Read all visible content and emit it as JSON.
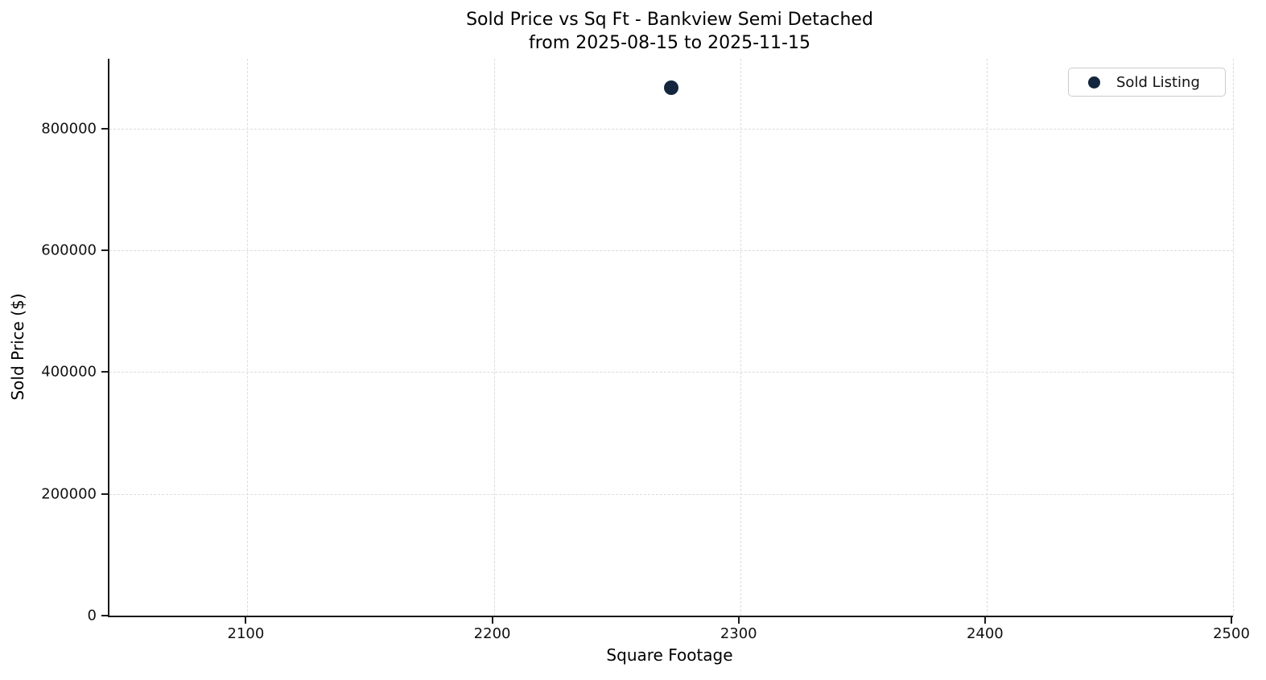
{
  "chart_data": {
    "type": "scatter",
    "title": "Sold Price vs Sq Ft - Bankview Semi Detached",
    "subtitle": "from 2025-08-15 to 2025-11-15",
    "xlabel": "Square Footage",
    "ylabel": "Sold Price ($)",
    "xlim": [
      2044,
      2500
    ],
    "ylim": [
      0,
      915000
    ],
    "x_ticks": [
      2100,
      2200,
      2300,
      2400,
      2500
    ],
    "y_ticks": [
      0,
      200000,
      400000,
      600000,
      800000
    ],
    "grid": true,
    "grid_line_style": "dashed",
    "grid_color": "#dcdcdc",
    "axis_color": "#1a1a1a",
    "legend": {
      "position": "upper right",
      "entries": [
        {
          "label": "Sold Listing",
          "color": "#13263d"
        }
      ]
    },
    "series": [
      {
        "name": "Sold Listing",
        "color": "#13263d",
        "marker": "circle",
        "marker_diameter_px": 18,
        "points": [
          {
            "x": 2272,
            "y": 868000
          }
        ]
      }
    ]
  }
}
